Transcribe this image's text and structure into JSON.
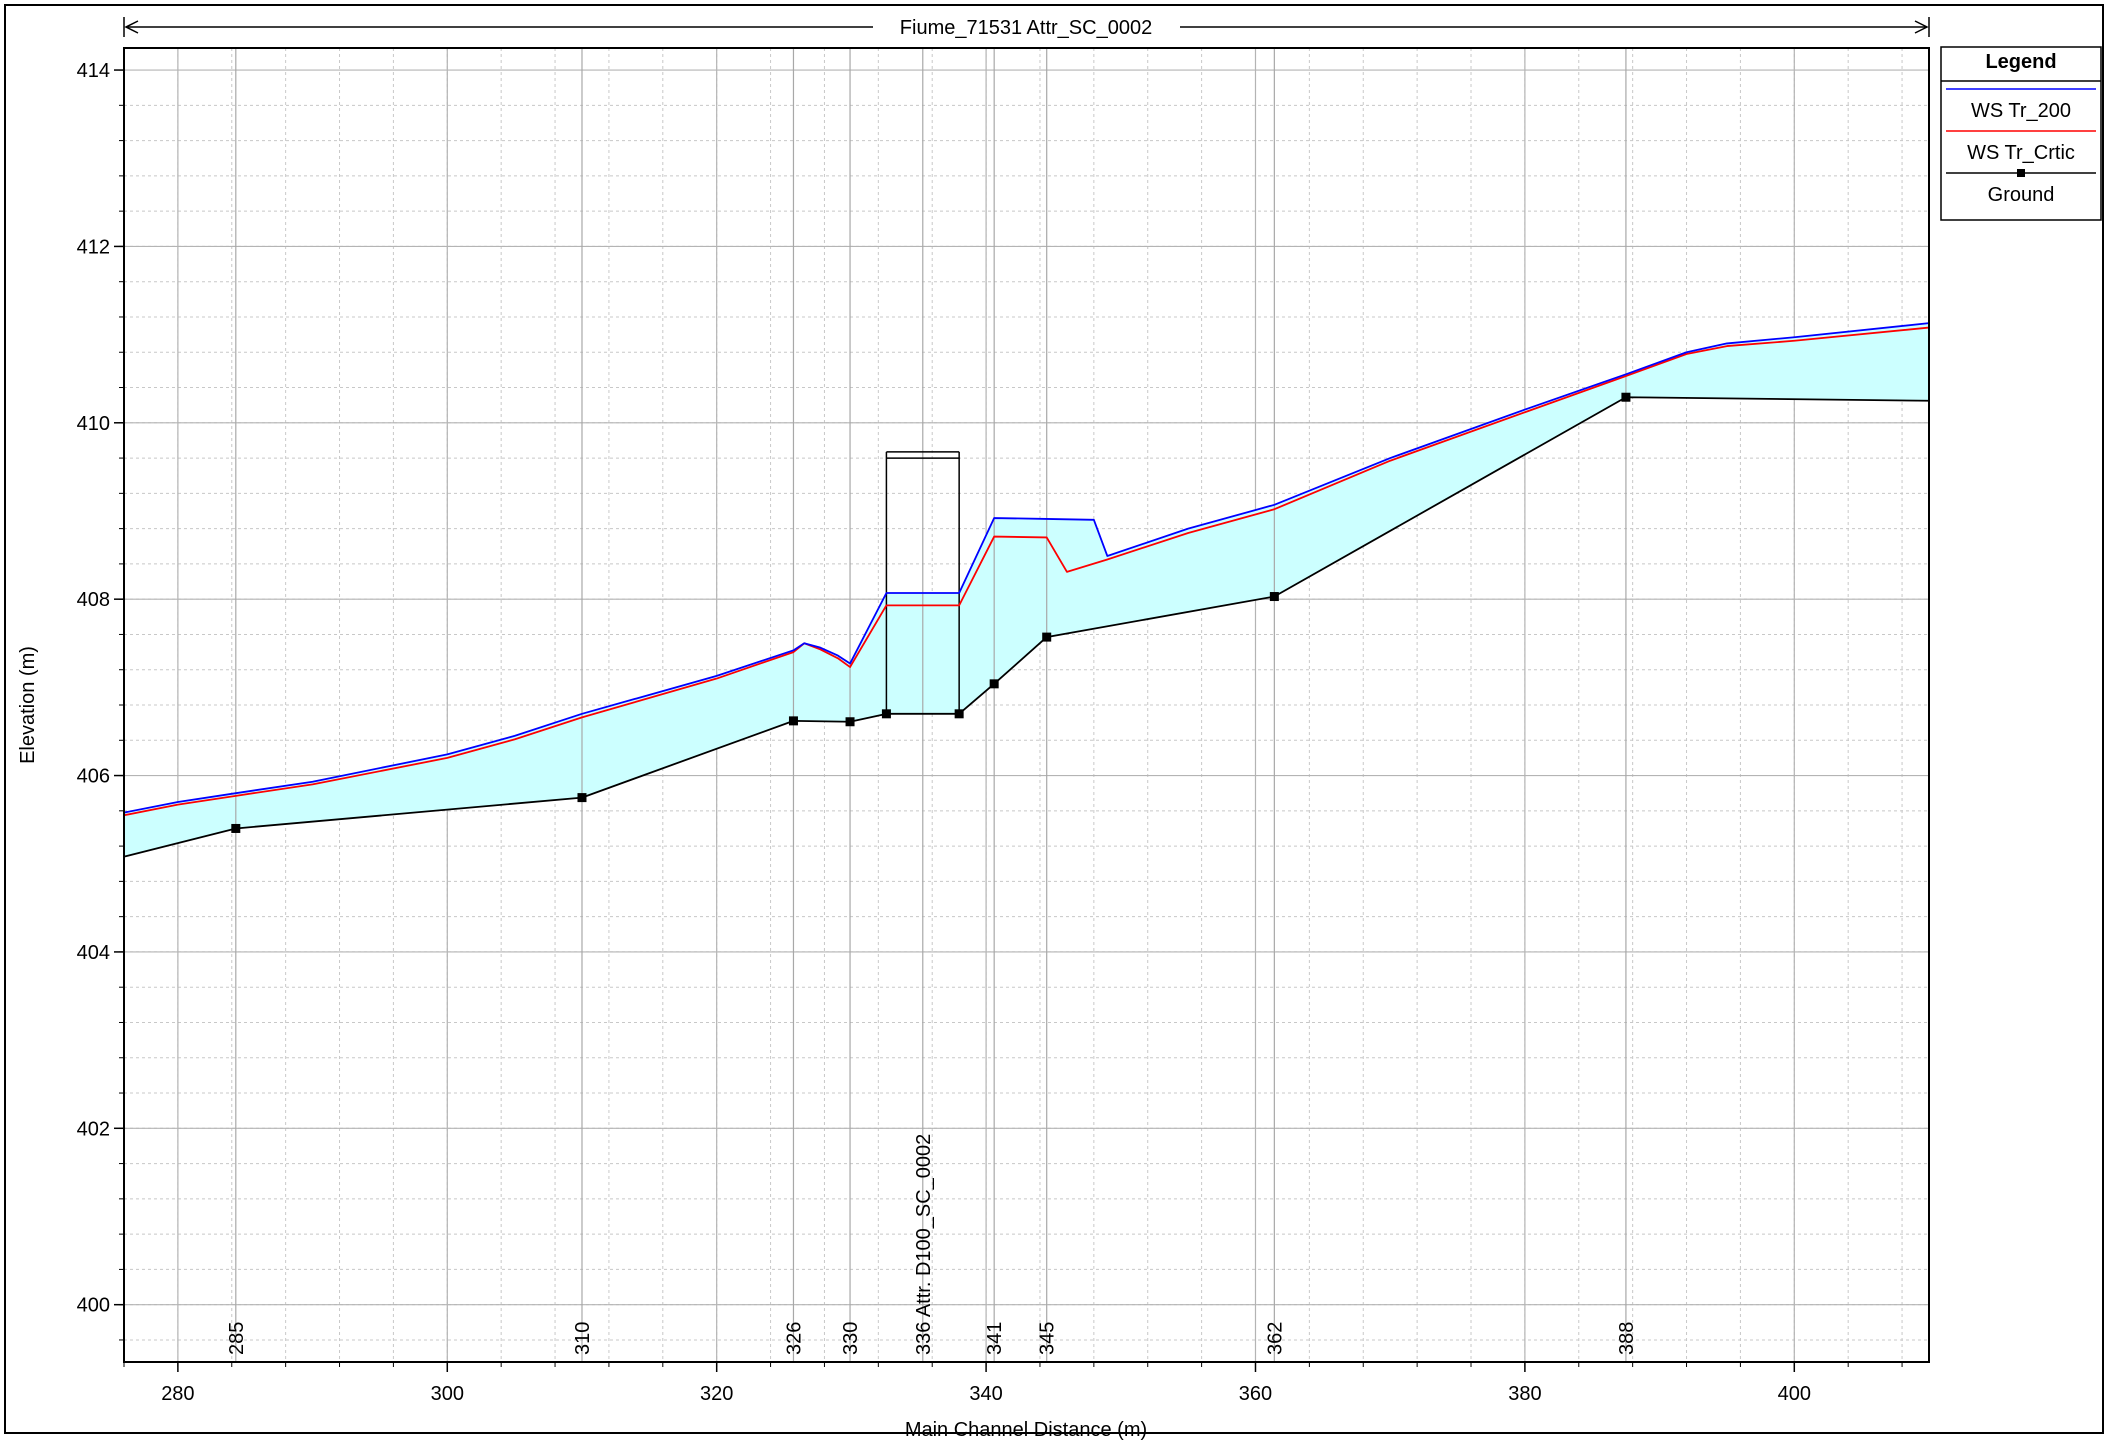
{
  "chart_data": {
    "type": "line",
    "title": "Fiume_71531 Attr_SC_0002",
    "xlabel": "Main Channel Distance (m)",
    "ylabel": "Elevation (m)",
    "xlim": [
      276,
      410
    ],
    "ylim": [
      399.35,
      414.25
    ],
    "x_ticks": [
      280,
      300,
      320,
      340,
      360,
      380,
      400
    ],
    "y_ticks": [
      400,
      402,
      404,
      406,
      408,
      410,
      412,
      414
    ],
    "grid": true,
    "legend_position": "right",
    "legend": {
      "title": "Legend",
      "entries": [
        {
          "label": "WS  Tr_200",
          "color": "#0000ff"
        },
        {
          "label": "WS  Tr_Crtic",
          "color": "#ff0000"
        },
        {
          "label": "Ground",
          "color": "#000000",
          "marker": "square"
        }
      ]
    },
    "fill_color": "#ccffff",
    "series": [
      {
        "name": "WS  Tr_200",
        "color": "#0000ff",
        "x": [
          276,
          280,
          284.3,
          290,
          300,
          305,
          310,
          320,
          325.7,
          326.5,
          327.7,
          329,
          329.9,
          332.6,
          338,
          340.6,
          344.5,
          348,
          349,
          355,
          361.4,
          370,
          380,
          387.5,
          392,
          395,
          400,
          410
        ],
        "y": [
          405.58,
          405.7,
          405.8,
          405.93,
          406.24,
          406.45,
          406.7,
          407.13,
          407.42,
          407.5,
          407.45,
          407.36,
          407.27,
          408.07,
          408.07,
          408.92,
          408.91,
          408.9,
          408.49,
          408.8,
          409.07,
          409.6,
          410.15,
          410.55,
          410.8,
          410.9,
          410.97,
          411.13
        ]
      },
      {
        "name": "WS  Tr_Crtic",
        "color": "#ff0000",
        "x": [
          276,
          280,
          284.3,
          290,
          300,
          305,
          310,
          320,
          325.7,
          326.5,
          327.7,
          329,
          329.9,
          332.6,
          338,
          340.6,
          344.5,
          346,
          349,
          355,
          361.4,
          370,
          380,
          387.5,
          392,
          395,
          400,
          410
        ],
        "y": [
          405.55,
          405.67,
          405.77,
          405.9,
          406.2,
          406.41,
          406.66,
          407.1,
          407.4,
          407.5,
          407.43,
          407.33,
          407.23,
          407.93,
          407.93,
          408.71,
          408.7,
          408.31,
          408.45,
          408.75,
          409.02,
          409.57,
          410.12,
          410.53,
          410.78,
          410.87,
          410.93,
          411.08
        ]
      },
      {
        "name": "Ground",
        "color": "#000000",
        "x": [
          276,
          284.3,
          310,
          325.7,
          329.9,
          332.6,
          338,
          340.6,
          344.5,
          361.4,
          387.5,
          410
        ],
        "y": [
          405.08,
          405.4,
          405.75,
          406.62,
          406.61,
          406.7,
          406.7,
          407.04,
          407.57,
          408.03,
          410.29,
          410.25
        ],
        "marker_x": [
          284.3,
          310,
          325.7,
          329.9,
          332.6,
          338,
          340.6,
          344.5,
          361.4,
          387.5
        ],
        "marker_y": [
          405.4,
          405.75,
          406.62,
          406.61,
          406.7,
          406.7,
          407.04,
          407.57,
          408.03,
          410.29
        ]
      }
    ],
    "structure": {
      "x_start": 332.6,
      "x_end": 338,
      "top_elevation": 409.67,
      "deck_bottom_elevation": 409.6,
      "bottom_elevation": 406.7
    },
    "cross_sections": [
      {
        "label": "285",
        "x": 284.3
      },
      {
        "label": "310",
        "x": 310
      },
      {
        "label": "326",
        "x": 325.7
      },
      {
        "label": "330",
        "x": 329.9
      },
      {
        "label": "336 Attr. D100_SC_0002",
        "x": 335.3
      },
      {
        "label": "341",
        "x": 340.6
      },
      {
        "label": "345",
        "x": 344.5
      },
      {
        "label": "362",
        "x": 361.4
      },
      {
        "label": "388",
        "x": 387.5
      }
    ]
  }
}
